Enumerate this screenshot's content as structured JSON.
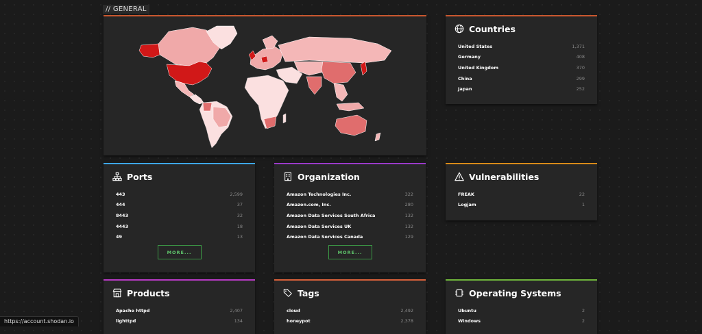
{
  "section_title": "// GENERAL",
  "colors": {
    "map_high": "#d11818",
    "map_mid": "#e06d6d",
    "map_low": "#f4b7b7",
    "map_min": "#fbe0e0",
    "ports_border": "#3da6e8",
    "org_border": "#9a3ac9",
    "vuln_border": "#d88a19",
    "products_border": "#b73ac4",
    "tags_border": "#d8603a",
    "os_border": "#6fb53b",
    "map_border": "#c9572f",
    "countries_border": "#c9572f"
  },
  "countries": {
    "title": "Countries",
    "icon": "globe-icon",
    "items": [
      {
        "name": "United States",
        "count": "1,371"
      },
      {
        "name": "Germany",
        "count": "408"
      },
      {
        "name": "United Kingdom",
        "count": "370"
      },
      {
        "name": "China",
        "count": "299"
      },
      {
        "name": "Japan",
        "count": "252"
      }
    ]
  },
  "ports": {
    "title": "Ports",
    "icon": "network-icon",
    "items": [
      {
        "name": "443",
        "count": "2,599"
      },
      {
        "name": "444",
        "count": "37"
      },
      {
        "name": "8443",
        "count": "32"
      },
      {
        "name": "4443",
        "count": "18"
      },
      {
        "name": "49",
        "count": "13"
      }
    ],
    "more_label": "MORE..."
  },
  "organization": {
    "title": "Organization",
    "icon": "building-icon",
    "items": [
      {
        "name": "Amazon Technologies Inc.",
        "count": "322"
      },
      {
        "name": "Amazon.com, Inc.",
        "count": "280"
      },
      {
        "name": "Amazon Data Services South Africa",
        "count": "132"
      },
      {
        "name": "Amazon Data Services UK",
        "count": "132"
      },
      {
        "name": "Amazon Data Services Canada",
        "count": "129"
      }
    ],
    "more_label": "MORE..."
  },
  "vulnerabilities": {
    "title": "Vulnerabilities",
    "icon": "warning-icon",
    "items": [
      {
        "name": "FREAK",
        "count": "22"
      },
      {
        "name": "Logjam",
        "count": "1"
      }
    ]
  },
  "products": {
    "title": "Products",
    "icon": "store-icon",
    "items": [
      {
        "name": "Apache httpd",
        "count": "2,407"
      },
      {
        "name": "lighttpd",
        "count": "134"
      }
    ]
  },
  "tags": {
    "title": "Tags",
    "icon": "tags-icon",
    "items": [
      {
        "name": "cloud",
        "count": "2,492"
      },
      {
        "name": "honeypot",
        "count": "2,378"
      }
    ]
  },
  "operating_systems": {
    "title": "Operating Systems",
    "icon": "chip-icon",
    "items": [
      {
        "name": "Ubuntu",
        "count": "2"
      },
      {
        "name": "Windows",
        "count": "2"
      }
    ]
  },
  "status_bar": "https://account.shodan.io"
}
